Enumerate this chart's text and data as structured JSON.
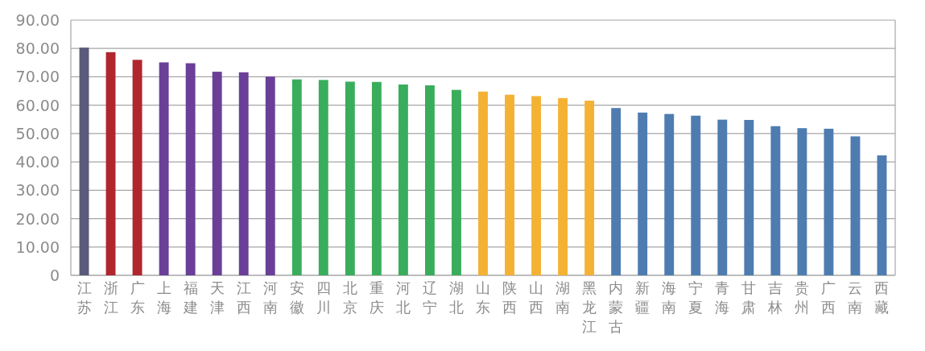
{
  "chart_data": {
    "type": "bar",
    "categories": [
      "江苏",
      "浙江",
      "广东",
      "上海",
      "福建",
      "天津",
      "江西",
      "河南",
      "安徽",
      "四川",
      "北京",
      "重庆",
      "河北",
      "辽宁",
      "湖北",
      "山东",
      "陕西",
      "山西",
      "湖南",
      "黑龙江",
      "内蒙古",
      "新疆",
      "海南",
      "宁夏",
      "青海",
      "甘肃",
      "吉林",
      "贵州",
      "广西",
      "云南",
      "西藏"
    ],
    "values": [
      80.3,
      78.7,
      76.0,
      75.1,
      74.8,
      71.8,
      71.6,
      70.1,
      69.1,
      68.9,
      68.3,
      68.2,
      67.3,
      67.0,
      65.4,
      64.8,
      63.7,
      63.2,
      62.5,
      61.6,
      59.0,
      57.4,
      56.9,
      56.3,
      54.9,
      54.8,
      52.6,
      51.9,
      51.7,
      49.0,
      42.3
    ],
    "colors": [
      "#5a5a7a",
      "#b0262e",
      "#b0262e",
      "#6a3f98",
      "#6a3f98",
      "#6a3f98",
      "#6a3f98",
      "#6a3f98",
      "#3aad5c",
      "#3aad5c",
      "#3aad5c",
      "#3aad5c",
      "#3aad5c",
      "#3aad5c",
      "#3aad5c",
      "#f4b234",
      "#f4b234",
      "#f4b234",
      "#f4b234",
      "#f4b234",
      "#4e7cb0",
      "#4e7cb0",
      "#4e7cb0",
      "#4e7cb0",
      "#4e7cb0",
      "#4e7cb0",
      "#4e7cb0",
      "#4e7cb0",
      "#4e7cb0",
      "#4e7cb0",
      "#4e7cb0"
    ],
    "ylim": [
      0,
      90
    ],
    "yticks": [
      0,
      {
        "value": 10,
        "label": "10.00"
      },
      {
        "value": 20,
        "label": "20.00"
      },
      {
        "value": 30,
        "label": "30.00"
      },
      {
        "value": 40,
        "label": "40.00"
      },
      {
        "value": 50,
        "label": "50.00"
      },
      {
        "value": 60,
        "label": "60.00"
      },
      {
        "value": 70,
        "label": "70.00"
      },
      {
        "value": 80,
        "label": "80.00"
      },
      {
        "value": 90,
        "label": "90.00"
      }
    ],
    "grid": "y"
  }
}
